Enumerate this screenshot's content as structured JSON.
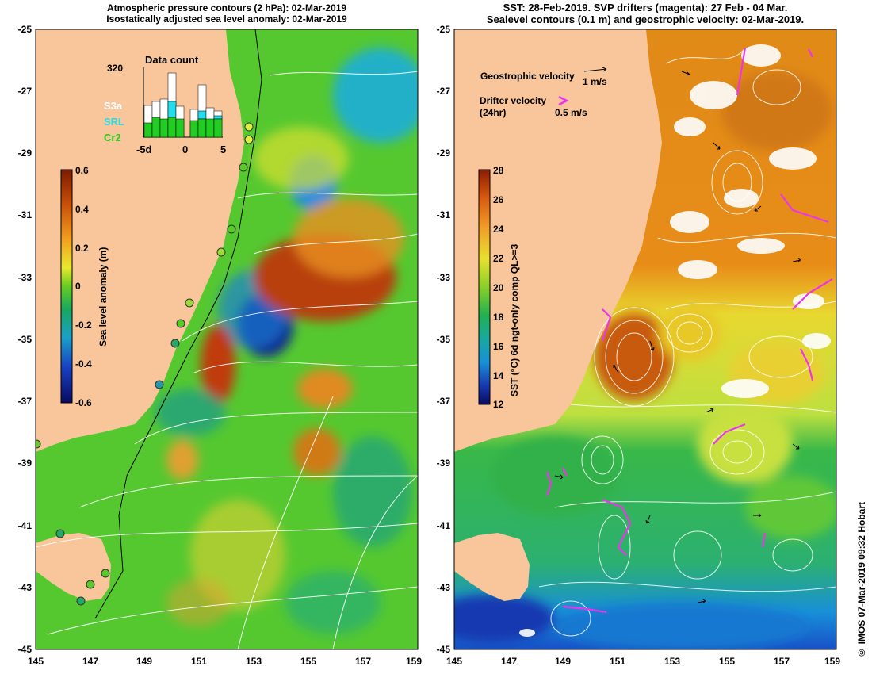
{
  "left_panel": {
    "title_line1": "Atmospheric pressure contours (2 hPa): 02-Mar-2019",
    "title_line2": "Isostatically adjusted sea level anomaly: 02-Mar-2019",
    "colorbar": {
      "label": "Sea level anomaly (m)",
      "ticks": [
        "0.6",
        "0.4",
        "0.2",
        "0",
        "-0.2",
        "-0.4",
        "-0.6"
      ]
    },
    "inset": {
      "title": "Data count",
      "ymax_label": "320",
      "x_ticks": [
        "-5d",
        "0",
        "5"
      ],
      "legend": [
        {
          "label": "S3a",
          "color": "#ffffff"
        },
        {
          "label": "SRL",
          "color": "#22ddee"
        },
        {
          "label": "Cr2",
          "color": "#22cc22"
        }
      ]
    }
  },
  "right_panel": {
    "title_line1": "SST: 28-Feb-2019. SVP drifters (magenta): 27 Feb - 04 Mar.",
    "title_line2": "Sealevel contours (0.1 m) and geostrophic velocity: 02-Mar-2019.",
    "colorbar": {
      "label": "SST (°C) 6d ngt-only comp QL>=3",
      "ticks": [
        "28",
        "26",
        "24",
        "22",
        "20",
        "18",
        "16",
        "14",
        "12"
      ]
    },
    "legend": {
      "geo_label": "Geostrophic velocity",
      "geo_scale": "1 m/s",
      "drifter_label": "Drifter velocity",
      "drifter_sub": "(24hr)",
      "drifter_scale": "0.5 m/s"
    }
  },
  "axes": {
    "lat_labels": [
      "-25",
      "-27",
      "-29",
      "-31",
      "-33",
      "-35",
      "-37",
      "-39",
      "-41",
      "-43",
      "-45"
    ],
    "lon_labels": [
      "145",
      "147",
      "149",
      "151",
      "153",
      "155",
      "157",
      "159"
    ]
  },
  "credit": "© IMOS 07-Mar-2019 09:32 Hobart",
  "colors": {
    "land": "#f8c69a",
    "drifter": "#ee33ee"
  }
}
